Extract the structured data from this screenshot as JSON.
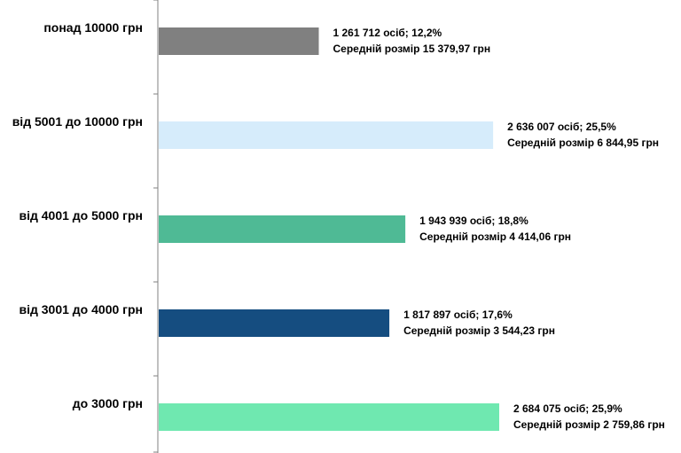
{
  "chart_data": {
    "type": "bar",
    "orientation": "horizontal",
    "categories": [
      "понад 10000 грн",
      "від 5001 до 10000 грн",
      "від 4001 до 5000 грн",
      "від 3001 до 4000 грн",
      "до 3000 грн"
    ],
    "values": [
      1261712,
      2636007,
      1943939,
      1817897,
      2684075
    ],
    "percent": [
      12.2,
      25.5,
      18.8,
      17.6,
      25.9
    ],
    "labels_line1": [
      "1 261 712 осіб;  12,2%",
      "2 636 007 осіб; 25,5%",
      "1 943 939 осіб; 18,8%",
      "1 817 897 осіб; 17,6%",
      "2 684 075 осіб; 25,9%"
    ],
    "labels_line2": [
      "Середній розмір 15 379,97 грн",
      "Середній розмір 6 844,95 грн",
      "Середній розмір 4 414,06 грн",
      "Середній розмір 3 544,23 грн",
      "Середній розмір 2 759,86 грн"
    ],
    "colors": [
      "#808080",
      "#d6ecfb",
      "#4fba95",
      "#154d80",
      "#6fe8b0"
    ],
    "axis_color": "#808080",
    "grid": false,
    "legend": "none"
  }
}
